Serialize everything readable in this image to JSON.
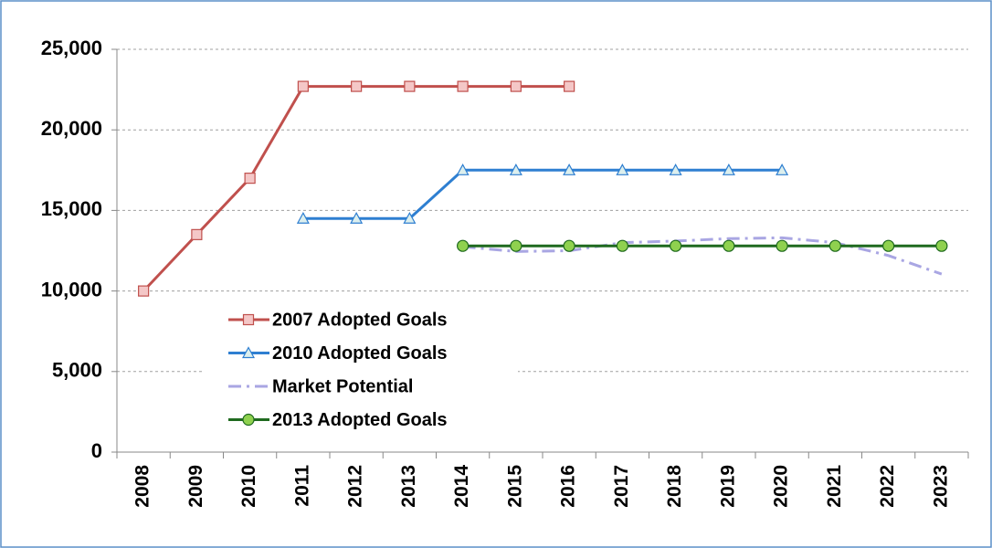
{
  "chart_data": {
    "type": "line",
    "categories": [
      "2008",
      "2009",
      "2010",
      "2011",
      "2012",
      "2013",
      "2014",
      "2015",
      "2016",
      "2017",
      "2018",
      "2019",
      "2020",
      "2021",
      "2022",
      "2023"
    ],
    "series": [
      {
        "name": "2007 Adopted Goals",
        "color": "#c0504d",
        "marker": "square",
        "marker_fill": "#f4c7c7",
        "dash": "solid",
        "values": [
          10000,
          13500,
          17000,
          22700,
          22700,
          22700,
          22700,
          22700,
          22700,
          null,
          null,
          null,
          null,
          null,
          null,
          null
        ]
      },
      {
        "name": "2010 Adopted Goals",
        "color": "#2e7fd1",
        "marker": "triangle",
        "marker_fill": "#dcefee",
        "dash": "solid",
        "values": [
          null,
          null,
          null,
          14500,
          14500,
          14500,
          17500,
          17500,
          17500,
          17500,
          17500,
          17500,
          17500,
          null,
          null,
          null
        ]
      },
      {
        "name": "Market Potential",
        "color": "#a9a6e3",
        "marker": "none",
        "marker_fill": "none",
        "dash": "dashdot",
        "values": [
          null,
          null,
          null,
          null,
          null,
          null,
          12750,
          12450,
          12500,
          13000,
          13100,
          13250,
          13300,
          13000,
          12200,
          11050
        ]
      },
      {
        "name": "2013 Adopted Goals",
        "color": "#1f6a1f",
        "marker": "circle",
        "marker_fill": "#8fd14f",
        "dash": "solid",
        "values": [
          null,
          null,
          null,
          null,
          null,
          null,
          12800,
          12800,
          12800,
          12800,
          12800,
          12800,
          12800,
          12800,
          12800,
          12800
        ]
      }
    ],
    "ylim": [
      0,
      25000
    ],
    "yticks": [
      0,
      {
        "value": 5000,
        "label": "5,000"
      },
      {
        "value": 10000,
        "label": "10,000"
      },
      {
        "value": 15000,
        "label": "15,000"
      },
      {
        "value": 20000,
        "label": "20,000"
      },
      {
        "value": 25000,
        "label": "25,000"
      }
    ],
    "grid": true,
    "legend": "lower-left"
  }
}
